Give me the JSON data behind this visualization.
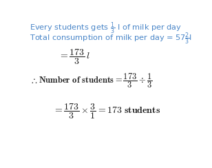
{
  "bg_color": "#ffffff",
  "blue": "#4a86c8",
  "dark": "#1a1a1a",
  "figsize": [
    3.08,
    2.44
  ],
  "dpi": 100
}
